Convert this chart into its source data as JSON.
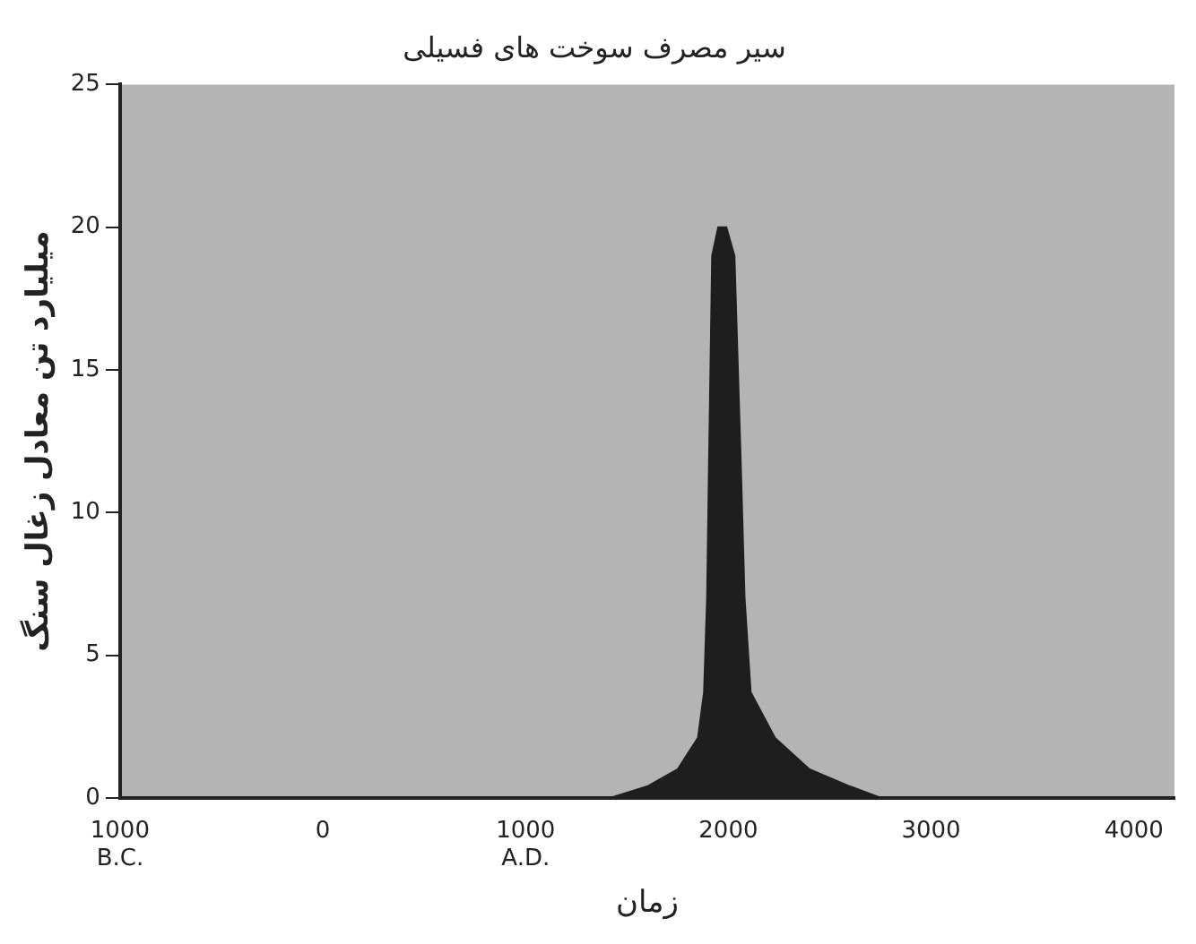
{
  "chart_data": {
    "type": "area",
    "title": "سیر مصرف سوخت های فسیلی",
    "xlabel": "زمان",
    "ylabel": "میلیارد تن معادل زغال سنگ",
    "x": [
      1420,
      1600,
      1750,
      1850,
      1880,
      1895,
      1905,
      1920,
      1950,
      1990,
      2030,
      2060,
      2080,
      2110,
      2230,
      2400,
      2600,
      2750
    ],
    "series": [
      {
        "color": "#1e1e1e",
        "values": [
          0,
          0.4,
          1,
          2.1,
          3.7,
          7,
          12,
          19,
          20,
          20,
          19,
          12,
          7,
          3.7,
          2.1,
          1,
          0.4,
          0
        ]
      }
    ],
    "xlim": [
      -1000,
      4200
    ],
    "xticks": [
      {
        "value": -1000,
        "label": "1000\nB.C."
      },
      0,
      {
        "value": 1000,
        "label": "1000\nA.D."
      },
      2000,
      3000,
      4000
    ],
    "ylim": [
      0,
      25
    ],
    "yticks": [
      0,
      5,
      10,
      15,
      20,
      25
    ],
    "grid": false,
    "legend": false
  }
}
